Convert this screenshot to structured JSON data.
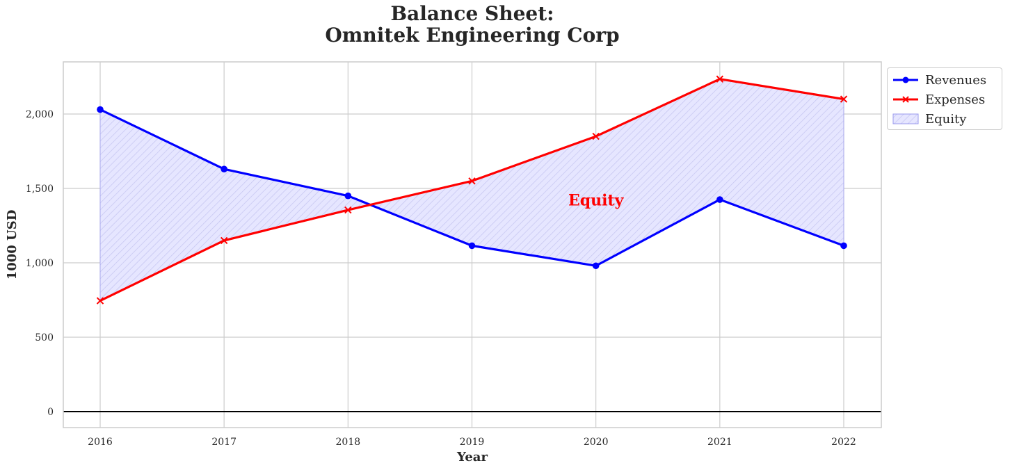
{
  "chart_data": {
    "type": "line",
    "title_lines": [
      "Balance Sheet:",
      "Omnitek Engineering Corp"
    ],
    "xlabel": "Year",
    "ylabel": "1000 USD",
    "categories": [
      "2016",
      "2017",
      "2018",
      "2019",
      "2020",
      "2021",
      "2022"
    ],
    "series": [
      {
        "name": "Revenues",
        "color": "#0000ff",
        "marker": "circle",
        "values": [
          2030,
          1630,
          1450,
          1115,
          980,
          1425,
          1115
        ]
      },
      {
        "name": "Expenses",
        "color": "#ff0000",
        "marker": "x",
        "values": [
          745,
          1150,
          1355,
          1550,
          1850,
          2235,
          2100
        ]
      }
    ],
    "fill": {
      "name": "Equity",
      "between": [
        "Revenues",
        "Expenses"
      ],
      "color": "#0000ff",
      "hatch": "////"
    },
    "annotation": {
      "text": "Equity",
      "x": "2020",
      "y": 1400,
      "color": "#ff0000"
    },
    "yticks": [
      0,
      500,
      1000,
      1500,
      2000
    ],
    "ytick_labels": [
      "0",
      "500",
      "1,000",
      "1,500",
      "2,000"
    ],
    "ylim": [
      -110,
      2350
    ],
    "grid": true,
    "zero_line": true,
    "legend_position": "outside-top-right"
  }
}
